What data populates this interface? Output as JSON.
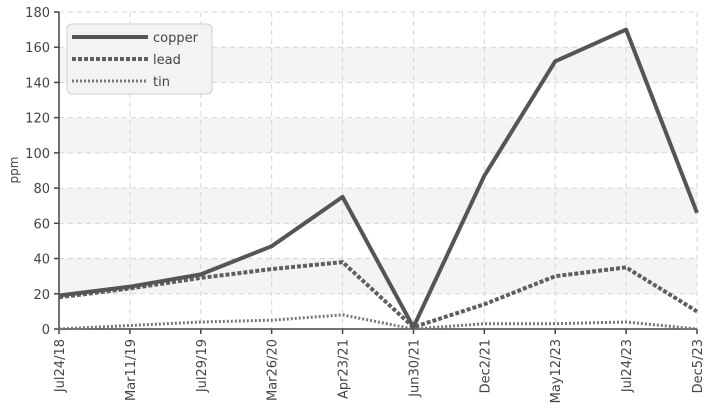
{
  "chart_data": {
    "type": "line",
    "title": "",
    "xlabel": "",
    "ylabel": "ppm",
    "ylim": [
      0,
      180
    ],
    "yticks": [
      0,
      20,
      40,
      60,
      80,
      100,
      120,
      140,
      160,
      180
    ],
    "grid": true,
    "legend_position": "top-left",
    "categories": [
      "Jul24/18",
      "Mar11/19",
      "Jul29/19",
      "Mar26/20",
      "Apr23/21",
      "Jun30/21",
      "Dec2/21",
      "May12/23",
      "Jul24/23",
      "Dec5/23"
    ],
    "series": [
      {
        "name": "copper",
        "values": [
          19,
          24,
          31,
          47,
          75,
          1,
          87,
          152,
          170,
          66
        ],
        "color": "#555555",
        "style": "solid"
      },
      {
        "name": "lead",
        "values": [
          18,
          23,
          29,
          34,
          38,
          1,
          14,
          30,
          35,
          10
        ],
        "color": "#5f5f5f",
        "style": "dashed"
      },
      {
        "name": "tin",
        "values": [
          0,
          2,
          4,
          5,
          8,
          0,
          3,
          3,
          4,
          0
        ],
        "color": "#777777",
        "style": "dotted"
      }
    ]
  }
}
